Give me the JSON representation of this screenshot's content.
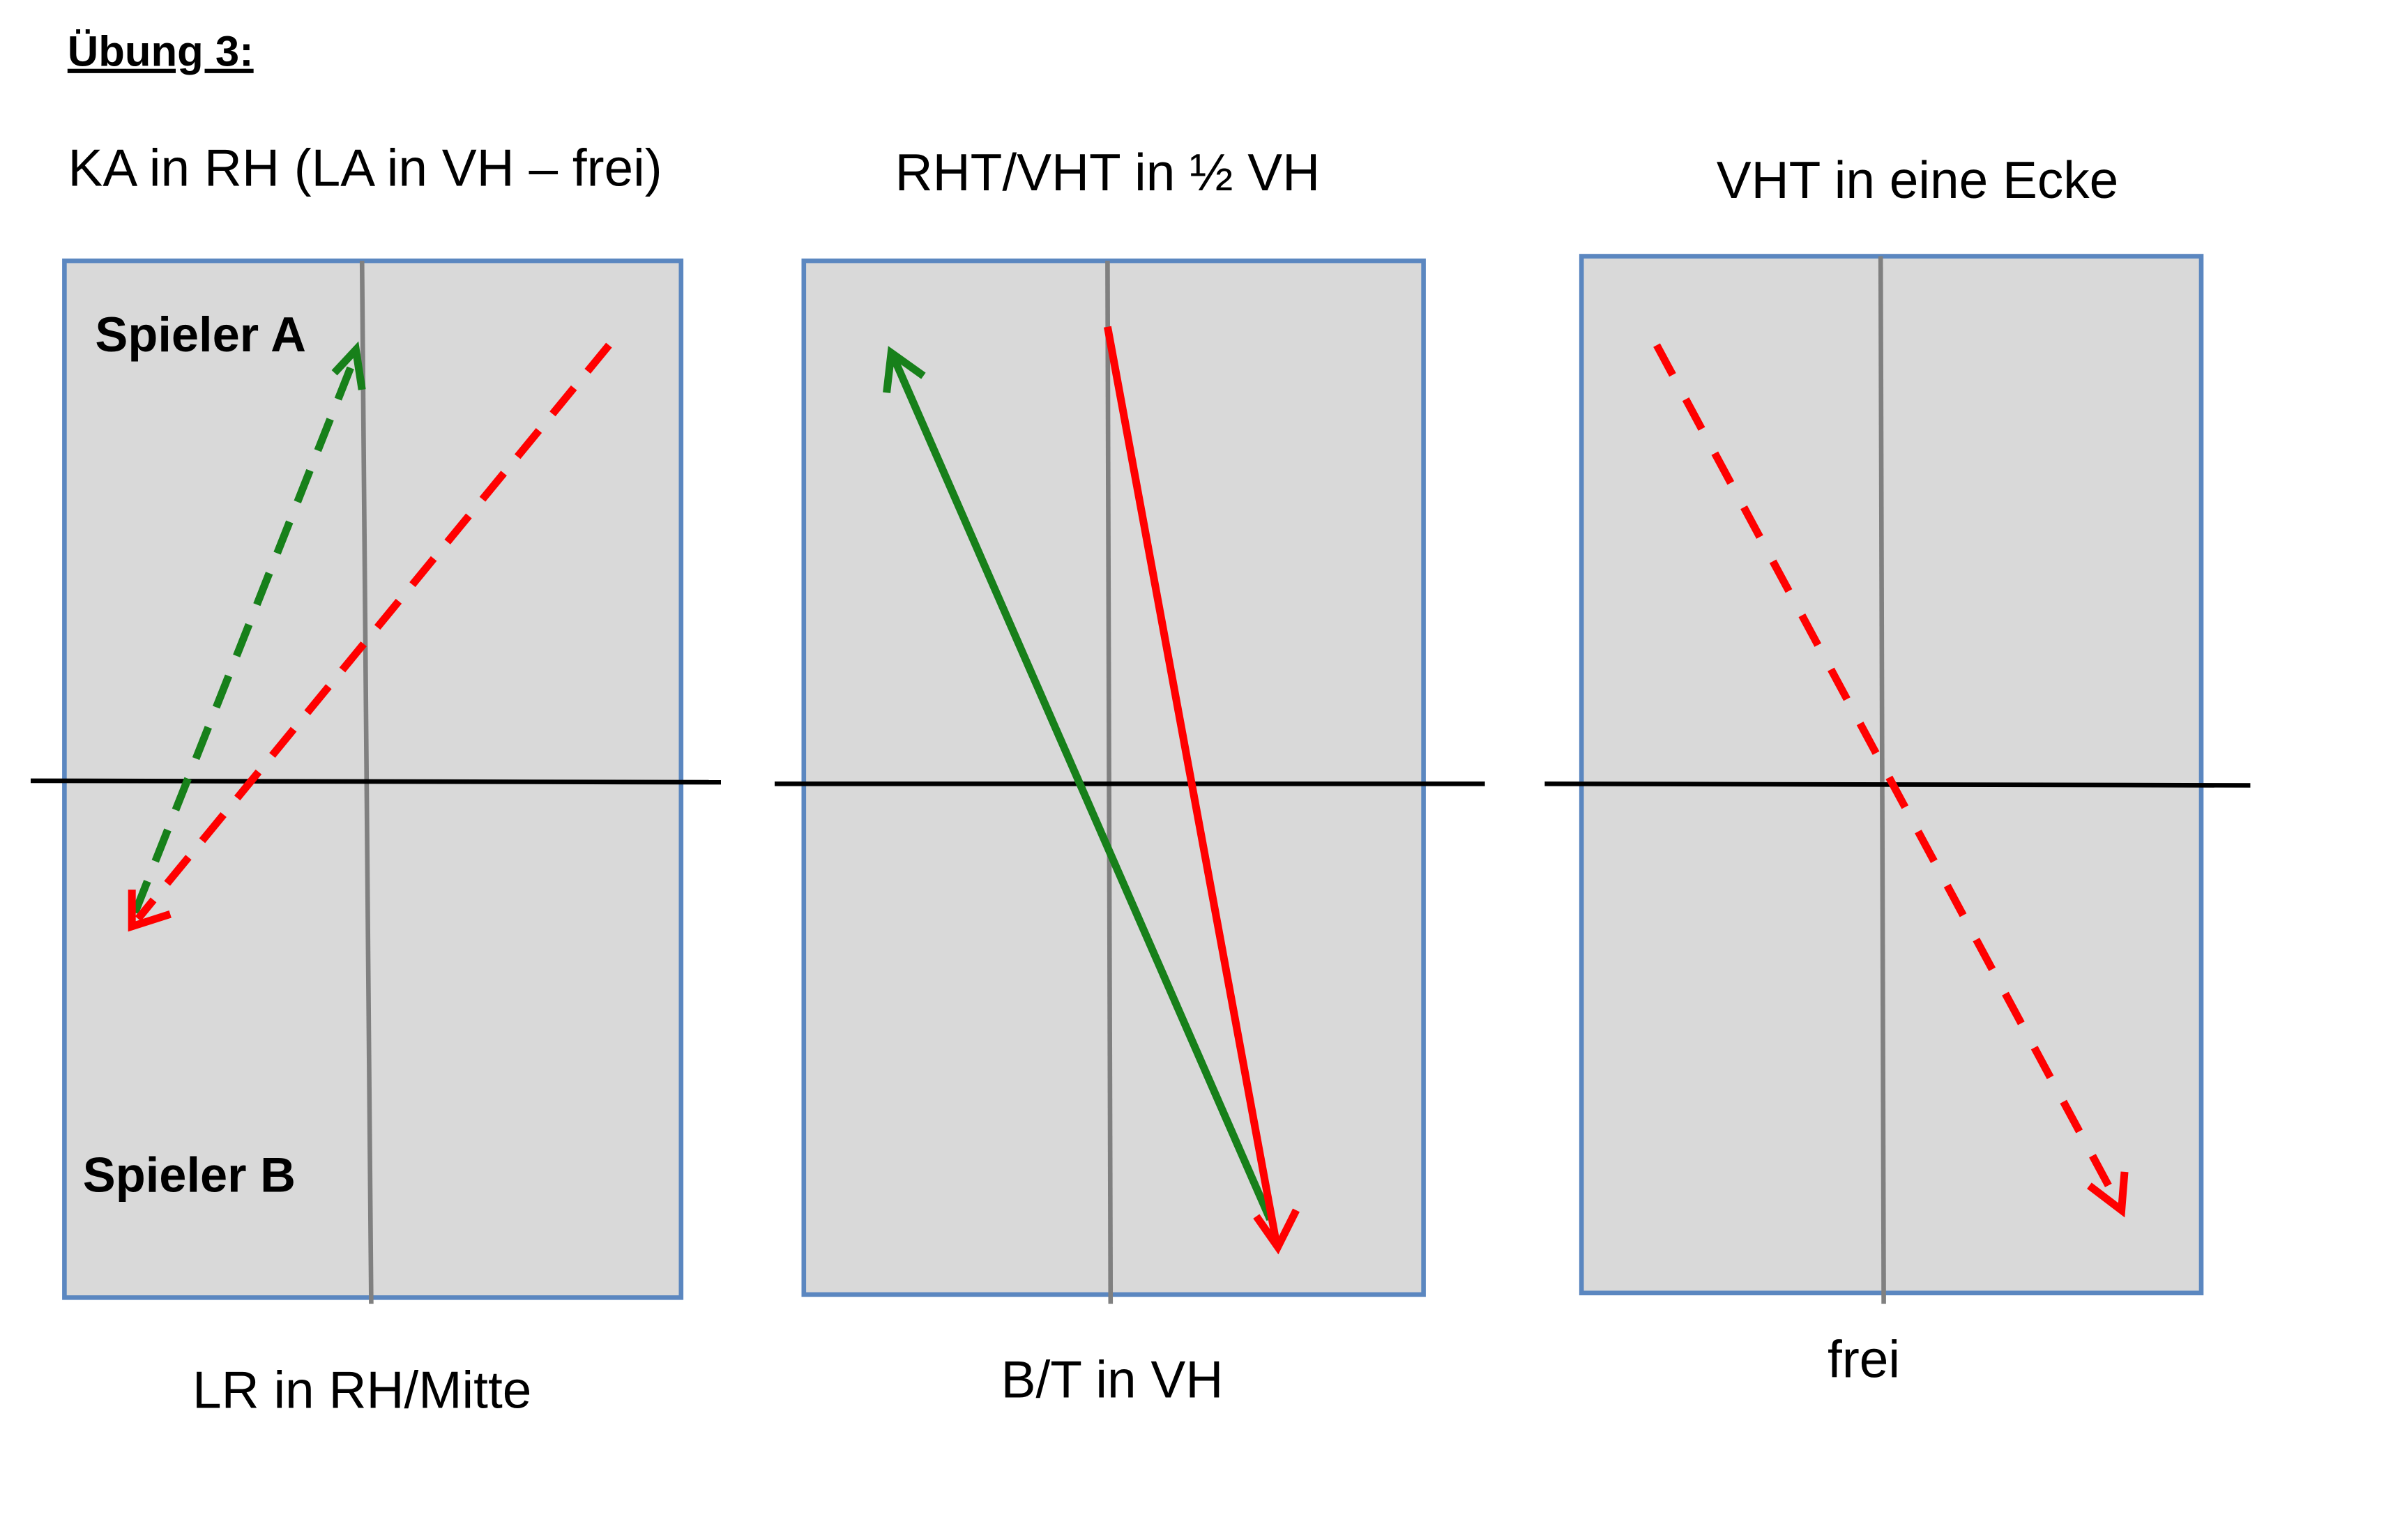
{
  "header": {
    "title": "Übung 3:"
  },
  "panels": [
    {
      "title": "KA in RH (LA in VH – frei)",
      "caption": "LR in RH/Mitte",
      "player_a": "Spieler A",
      "player_b": "Spieler B"
    },
    {
      "title": "RHT/VHT in ½ VH",
      "caption": "B/T in VH"
    },
    {
      "title": "VHT in eine Ecke",
      "caption": "frei"
    }
  ]
}
